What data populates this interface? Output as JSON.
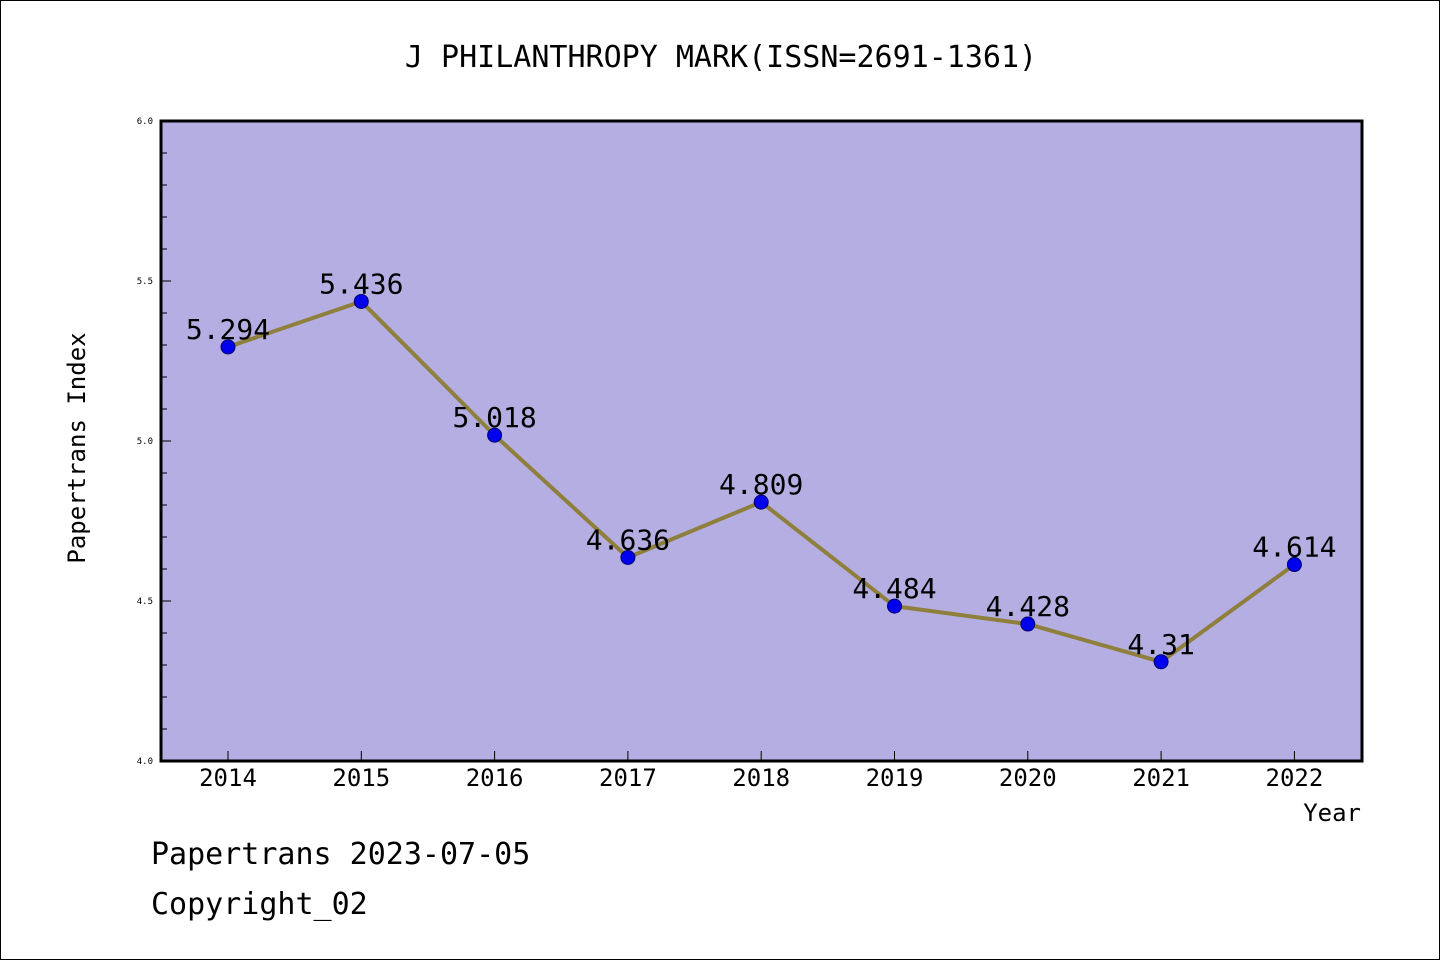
{
  "chart_data": {
    "type": "line",
    "title": "J PHILANTHROPY MARK(ISSN=2691-1361)",
    "xlabel": "Year",
    "ylabel": "Papertrans Index",
    "categories": [
      "2014",
      "2015",
      "2016",
      "2017",
      "2018",
      "2019",
      "2020",
      "2021",
      "2022"
    ],
    "series": [
      {
        "values": [
          5.294,
          5.436,
          5.018,
          4.636,
          4.809,
          4.484,
          4.428,
          4.31,
          4.614
        ],
        "labels": [
          "5.294",
          "5.436",
          "5.018",
          "4.636",
          "4.809",
          "4.484",
          "4.428",
          "4.31",
          "4.614"
        ]
      }
    ],
    "ylim": [
      4.0,
      6.0
    ],
    "yticks": [
      "4.0",
      "4.5",
      "5.0",
      "5.5",
      "6.0"
    ],
    "grid": false,
    "colors": {
      "plot_background": "#b5aee2",
      "line": "#8e7f3c",
      "marker": "#0000ee"
    }
  },
  "footer": {
    "line1": "Papertrans 2023-07-05",
    "line2": "Copyright_02"
  }
}
